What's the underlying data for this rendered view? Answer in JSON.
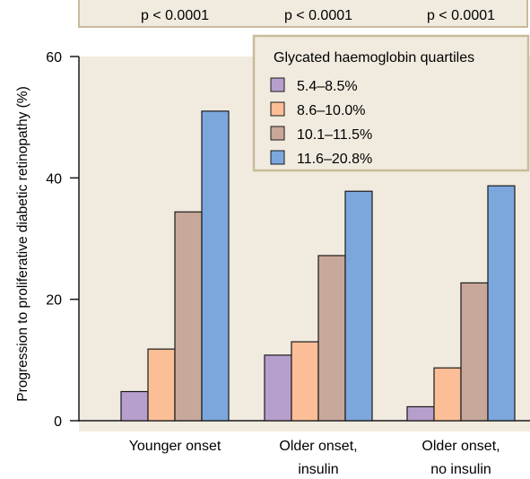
{
  "chart_data": {
    "type": "bar",
    "categories": [
      "Younger onset",
      "Older onset, insulin",
      "Older onset, no insulin"
    ],
    "category_label_lines": [
      [
        "Younger onset"
      ],
      [
        "Older onset,",
        "insulin"
      ],
      [
        "Older onset,",
        "no insulin"
      ]
    ],
    "p_values": [
      "p < 0.0001",
      "p < 0.0001",
      "p < 0.0001"
    ],
    "legend_title": "Glycated haemoglobin quartiles",
    "legend_placement": "top-right",
    "series": [
      {
        "name": "5.4–8.5%",
        "color": "#b79fcd",
        "values": [
          4.8,
          10.8,
          2.3
        ]
      },
      {
        "name": "8.6–10.0%",
        "color": "#fbbe97",
        "values": [
          11.8,
          13.0,
          8.7
        ]
      },
      {
        "name": "10.1–11.5%",
        "color": "#c8a89a",
        "values": [
          34.4,
          27.2,
          22.7
        ]
      },
      {
        "name": "11.6–20.8%",
        "color": "#7ba7dd",
        "values": [
          51.0,
          37.8,
          38.7
        ]
      }
    ],
    "ylabel": "Progression to proliferative diabetic retinopathy (%)",
    "xlabel": "",
    "ylim": [
      0,
      60
    ],
    "yticks": [
      0,
      20,
      40,
      60
    ],
    "grid": false,
    "plot_background": "#f1ebdf",
    "banner_background": "#f1ebdf",
    "banner_border": "#c9bb9a"
  }
}
